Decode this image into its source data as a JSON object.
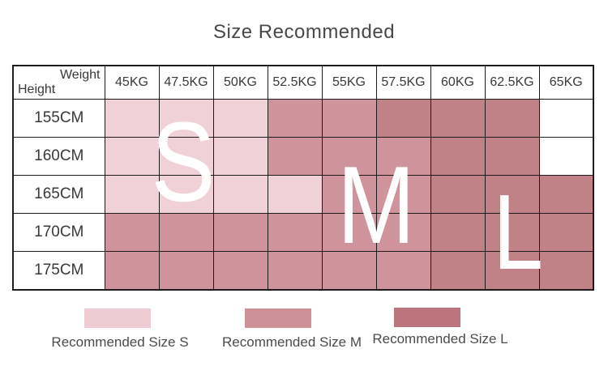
{
  "title": "Size Recommended",
  "colors": {
    "size_s": "#f0d1d7",
    "size_m": "#cf949b",
    "size_l": "#c08187",
    "legend_s": "#efccd3",
    "legend_m": "#cf9198",
    "legend_l": "#bb737c",
    "empty_cell": "#ffffff",
    "grid_line": "#1c1c1c",
    "diagonal_line": "#9a9a9a",
    "title_text": "#4b4749",
    "table_text": "#39393b",
    "legend_text": "#4e4a4c",
    "overlay_letter_text": "#ffffff"
  },
  "table": {
    "corner": {
      "top_label": "Weight",
      "bottom_label": "Height"
    }
  },
  "chart_data": {
    "type": "heatmap",
    "title": "Size Recommended",
    "xlabel": "Weight",
    "ylabel": "Height",
    "x_categories": [
      "45KG",
      "47.5KG",
      "50KG",
      "52.5KG",
      "55KG",
      "57.5KG",
      "60KG",
      "62.5KG",
      "65KG"
    ],
    "y_categories": [
      "155CM",
      "160CM",
      "165CM",
      "170CM",
      "175CM"
    ],
    "values": [
      [
        "S",
        "S",
        "S",
        "M",
        "M",
        "L",
        "L",
        "L",
        null
      ],
      [
        "S",
        "S",
        "S",
        "M",
        "M",
        "M",
        "L",
        "L",
        null
      ],
      [
        "S",
        "S",
        "S",
        "S",
        "M",
        "M",
        "L",
        "L",
        "L"
      ],
      [
        "M",
        "M",
        "M",
        "M",
        "M",
        "M",
        "L",
        "L",
        "L"
      ],
      [
        "M",
        "M",
        "M",
        "M",
        "M",
        "M",
        "L",
        "L",
        "L"
      ]
    ],
    "legend_position": "bottom",
    "grid": true
  },
  "overlay_letters": {
    "s": "S",
    "m": "M",
    "l": "L"
  },
  "legend": [
    {
      "label": "Recommended Size S",
      "size": "S",
      "color_key": "legend_s"
    },
    {
      "label": "Recommended Size M",
      "size": "M",
      "color_key": "legend_m"
    },
    {
      "label": "Recommended Size L",
      "size": "L",
      "color_key": "legend_l"
    }
  ]
}
